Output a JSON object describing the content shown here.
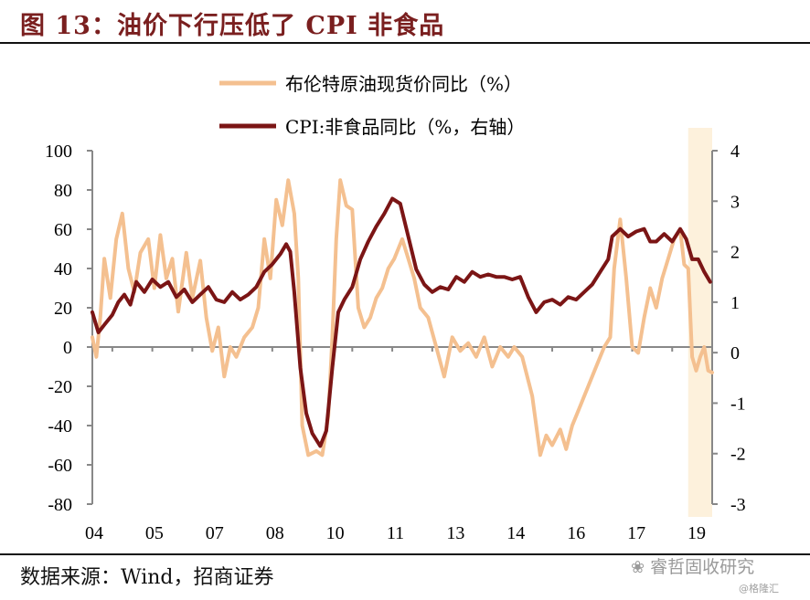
{
  "header": {
    "title": "图 13：油价下行压低了 CPI 非食品"
  },
  "footer": {
    "source": "数据来源：Wind，招商证券",
    "watermark": "睿哲固收研究",
    "watermark_sub": "@格隆汇"
  },
  "colors": {
    "brent": "#f4c090",
    "cpi": "#7b1515",
    "highlight": "#fdf1dc",
    "title": "#7a1f1f"
  },
  "chart_data": {
    "type": "line",
    "xlabel": "",
    "ylabel": "",
    "x_ticks": [
      "04",
      "05",
      "07",
      "08",
      "10",
      "11",
      "13",
      "14",
      "16",
      "17",
      "19"
    ],
    "x_range": [
      2004.0,
      2019.5
    ],
    "ylim": [
      -80,
      100
    ],
    "y_ticks": [
      100,
      80,
      60,
      40,
      20,
      0,
      -20,
      -40,
      -60,
      -80
    ],
    "ylim_right": [
      -3,
      4
    ],
    "y_ticks_right": [
      4,
      3,
      2,
      1,
      0,
      -1,
      -2,
      -3
    ],
    "grid": false,
    "legend_placement": "top",
    "highlight_region": [
      2018.9,
      2019.5
    ],
    "series": [
      {
        "name": "布伦特原油现货价同比（%）",
        "axis": "left",
        "points": [
          [
            2004.0,
            5
          ],
          [
            2004.1,
            -5
          ],
          [
            2004.2,
            15
          ],
          [
            2004.3,
            45
          ],
          [
            2004.45,
            25
          ],
          [
            2004.6,
            55
          ],
          [
            2004.75,
            68
          ],
          [
            2004.9,
            40
          ],
          [
            2005.05,
            28
          ],
          [
            2005.2,
            48
          ],
          [
            2005.4,
            55
          ],
          [
            2005.55,
            30
          ],
          [
            2005.7,
            57
          ],
          [
            2005.85,
            35
          ],
          [
            2006.0,
            45
          ],
          [
            2006.15,
            18
          ],
          [
            2006.35,
            48
          ],
          [
            2006.5,
            25
          ],
          [
            2006.7,
            44
          ],
          [
            2006.85,
            15
          ],
          [
            2007.0,
            -2
          ],
          [
            2007.15,
            10
          ],
          [
            2007.3,
            -15
          ],
          [
            2007.45,
            0
          ],
          [
            2007.6,
            -5
          ],
          [
            2007.8,
            5
          ],
          [
            2008.0,
            10
          ],
          [
            2008.15,
            20
          ],
          [
            2008.3,
            55
          ],
          [
            2008.45,
            35
          ],
          [
            2008.6,
            75
          ],
          [
            2008.75,
            62
          ],
          [
            2008.9,
            85
          ],
          [
            2009.05,
            68
          ],
          [
            2009.15,
            35
          ],
          [
            2009.25,
            -40
          ],
          [
            2009.4,
            -55
          ],
          [
            2009.6,
            -53
          ],
          [
            2009.75,
            -55
          ],
          [
            2009.9,
            -35
          ],
          [
            2010.0,
            5
          ],
          [
            2010.1,
            55
          ],
          [
            2010.2,
            85
          ],
          [
            2010.35,
            72
          ],
          [
            2010.5,
            70
          ],
          [
            2010.65,
            20
          ],
          [
            2010.8,
            10
          ],
          [
            2010.95,
            15
          ],
          [
            2011.1,
            25
          ],
          [
            2011.25,
            30
          ],
          [
            2011.4,
            40
          ],
          [
            2011.55,
            45
          ],
          [
            2011.75,
            55
          ],
          [
            2011.9,
            45
          ],
          [
            2012.05,
            35
          ],
          [
            2012.2,
            20
          ],
          [
            2012.4,
            15
          ],
          [
            2012.6,
            0
          ],
          [
            2012.8,
            -15
          ],
          [
            2013.0,
            5
          ],
          [
            2013.2,
            -2
          ],
          [
            2013.4,
            2
          ],
          [
            2013.6,
            -5
          ],
          [
            2013.8,
            5
          ],
          [
            2014.0,
            -10
          ],
          [
            2014.2,
            0
          ],
          [
            2014.4,
            -5
          ],
          [
            2014.55,
            0
          ],
          [
            2014.75,
            -5
          ],
          [
            2015.0,
            -25
          ],
          [
            2015.2,
            -55
          ],
          [
            2015.35,
            -45
          ],
          [
            2015.5,
            -50
          ],
          [
            2015.7,
            -42
          ],
          [
            2015.85,
            -52
          ],
          [
            2016.0,
            -40
          ],
          [
            2016.2,
            -30
          ],
          [
            2016.4,
            -20
          ],
          [
            2016.6,
            -10
          ],
          [
            2016.8,
            0
          ],
          [
            2016.95,
            5
          ],
          [
            2017.05,
            40
          ],
          [
            2017.2,
            65
          ],
          [
            2017.35,
            35
          ],
          [
            2017.5,
            0
          ],
          [
            2017.65,
            -3
          ],
          [
            2017.8,
            15
          ],
          [
            2017.95,
            30
          ],
          [
            2018.1,
            20
          ],
          [
            2018.25,
            35
          ],
          [
            2018.4,
            45
          ],
          [
            2018.55,
            55
          ],
          [
            2018.7,
            60
          ],
          [
            2018.8,
            42
          ],
          [
            2018.9,
            40
          ],
          [
            2019.0,
            -5
          ],
          [
            2019.1,
            -12
          ],
          [
            2019.2,
            -5
          ],
          [
            2019.3,
            0
          ],
          [
            2019.4,
            -12
          ],
          [
            2019.5,
            -13
          ]
        ]
      },
      {
        "name": "CPI:非食品同比（%，右轴）",
        "axis": "right",
        "points": [
          [
            2004.0,
            0.8
          ],
          [
            2004.15,
            0.4
          ],
          [
            2004.3,
            0.55
          ],
          [
            2004.5,
            0.75
          ],
          [
            2004.65,
            1.0
          ],
          [
            2004.8,
            1.15
          ],
          [
            2004.95,
            0.95
          ],
          [
            2005.1,
            1.4
          ],
          [
            2005.3,
            1.2
          ],
          [
            2005.5,
            1.45
          ],
          [
            2005.7,
            1.3
          ],
          [
            2005.9,
            1.4
          ],
          [
            2006.1,
            1.1
          ],
          [
            2006.3,
            1.25
          ],
          [
            2006.5,
            1.0
          ],
          [
            2006.7,
            1.15
          ],
          [
            2006.9,
            1.3
          ],
          [
            2007.1,
            1.05
          ],
          [
            2007.3,
            1.0
          ],
          [
            2007.5,
            1.2
          ],
          [
            2007.7,
            1.05
          ],
          [
            2007.9,
            1.15
          ],
          [
            2008.1,
            1.3
          ],
          [
            2008.3,
            1.6
          ],
          [
            2008.5,
            1.75
          ],
          [
            2008.7,
            1.95
          ],
          [
            2008.85,
            2.15
          ],
          [
            2008.95,
            2.0
          ],
          [
            2009.05,
            1.2
          ],
          [
            2009.2,
            -0.3
          ],
          [
            2009.35,
            -1.2
          ],
          [
            2009.5,
            -1.6
          ],
          [
            2009.7,
            -1.85
          ],
          [
            2009.85,
            -1.55
          ],
          [
            2010.0,
            -0.3
          ],
          [
            2010.15,
            0.8
          ],
          [
            2010.3,
            1.05
          ],
          [
            2010.5,
            1.3
          ],
          [
            2010.7,
            1.85
          ],
          [
            2010.9,
            2.2
          ],
          [
            2011.1,
            2.5
          ],
          [
            2011.3,
            2.75
          ],
          [
            2011.5,
            3.05
          ],
          [
            2011.7,
            2.95
          ],
          [
            2011.9,
            2.3
          ],
          [
            2012.1,
            1.65
          ],
          [
            2012.3,
            1.35
          ],
          [
            2012.5,
            1.2
          ],
          [
            2012.7,
            1.3
          ],
          [
            2012.9,
            1.25
          ],
          [
            2013.1,
            1.5
          ],
          [
            2013.3,
            1.4
          ],
          [
            2013.5,
            1.6
          ],
          [
            2013.7,
            1.5
          ],
          [
            2013.9,
            1.55
          ],
          [
            2014.1,
            1.5
          ],
          [
            2014.3,
            1.5
          ],
          [
            2014.5,
            1.45
          ],
          [
            2014.7,
            1.5
          ],
          [
            2014.9,
            1.1
          ],
          [
            2015.1,
            0.8
          ],
          [
            2015.3,
            1.0
          ],
          [
            2015.5,
            1.05
          ],
          [
            2015.7,
            0.95
          ],
          [
            2015.9,
            1.1
          ],
          [
            2016.1,
            1.05
          ],
          [
            2016.3,
            1.2
          ],
          [
            2016.5,
            1.35
          ],
          [
            2016.7,
            1.6
          ],
          [
            2016.9,
            1.85
          ],
          [
            2017.0,
            2.3
          ],
          [
            2017.2,
            2.45
          ],
          [
            2017.4,
            2.3
          ],
          [
            2017.6,
            2.4
          ],
          [
            2017.8,
            2.45
          ],
          [
            2017.95,
            2.2
          ],
          [
            2018.1,
            2.2
          ],
          [
            2018.3,
            2.35
          ],
          [
            2018.5,
            2.2
          ],
          [
            2018.7,
            2.45
          ],
          [
            2018.85,
            2.25
          ],
          [
            2019.0,
            1.85
          ],
          [
            2019.15,
            1.85
          ],
          [
            2019.3,
            1.6
          ],
          [
            2019.45,
            1.4
          ]
        ]
      }
    ]
  }
}
